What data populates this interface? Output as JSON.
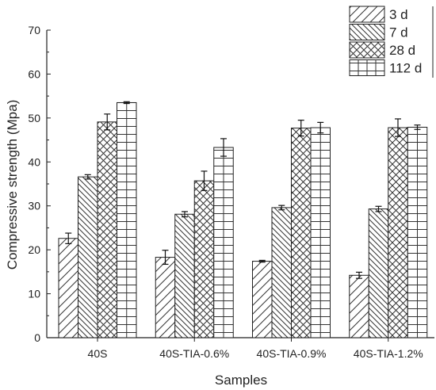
{
  "chart_data": {
    "type": "bar",
    "xlabel": "Samples",
    "ylabel": "Compressive strength (Mpa)",
    "ylim": [
      0,
      70
    ],
    "yticks": [
      0,
      10,
      20,
      30,
      40,
      50,
      60,
      70
    ],
    "categories": [
      "40S",
      "40S-TIA-0.6%",
      "40S-TIA-0.9%",
      "40S-TIA-1.2%"
    ],
    "series": [
      {
        "name": "3 d",
        "pattern": "diag-forward",
        "values": [
          22.6,
          18.3,
          17.4,
          14.2
        ],
        "errors": [
          1.2,
          1.6,
          0.2,
          0.7
        ]
      },
      {
        "name": "7 d",
        "pattern": "diag-backward",
        "values": [
          36.6,
          28.1,
          29.6,
          29.3
        ],
        "errors": [
          0.5,
          0.6,
          0.5,
          0.6
        ]
      },
      {
        "name": "28 d",
        "pattern": "crosshatch",
        "values": [
          49.1,
          35.7,
          47.7,
          47.8
        ],
        "errors": [
          1.8,
          2.2,
          1.8,
          2.0
        ]
      },
      {
        "name": "112 d",
        "pattern": "grid",
        "values": [
          53.5,
          43.3,
          47.8,
          47.9
        ],
        "errors": [
          0.2,
          2.0,
          1.2,
          0.5
        ]
      }
    ],
    "legend_position": "top-right",
    "grid": false
  }
}
